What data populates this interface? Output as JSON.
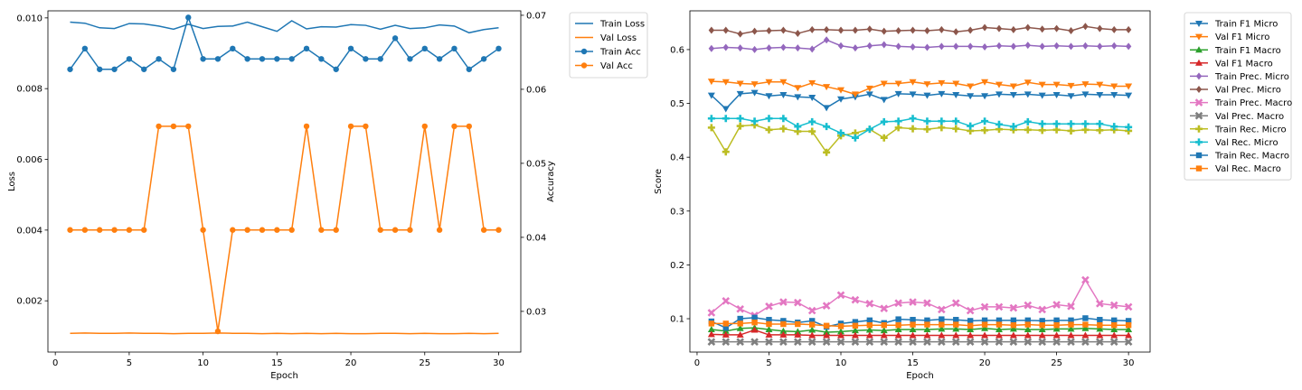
{
  "chart_data": [
    {
      "type": "line",
      "xlabel": "Epoch",
      "ylabel": "Loss",
      "y2label": "Accuracy",
      "xlim": [
        -0.5,
        31.5
      ],
      "ylim": [
        0.00055,
        0.0102
      ],
      "y2lim": [
        0.0245,
        0.0706
      ],
      "xticks": [
        0,
        5,
        10,
        15,
        20,
        25,
        30
      ],
      "yticks": [
        0.002,
        0.004,
        0.006,
        0.008,
        0.01
      ],
      "ytick_labels": [
        "0.002",
        "0.004",
        "0.006",
        "0.008",
        "0.010"
      ],
      "y2ticks": [
        0.03,
        0.04,
        0.05,
        0.06,
        0.07
      ],
      "y2tick_labels": [
        "0.03",
        "0.04",
        "0.05",
        "0.06",
        "0.07"
      ],
      "legend_position": "outside-right-top",
      "x": [
        1,
        2,
        3,
        4,
        5,
        6,
        7,
        8,
        9,
        10,
        11,
        12,
        13,
        14,
        15,
        16,
        17,
        18,
        19,
        20,
        21,
        22,
        23,
        24,
        25,
        26,
        27,
        28,
        29,
        30
      ],
      "series": [
        {
          "name": "Train Loss",
          "axis": "left",
          "color": "#1f77b4",
          "marker": "none",
          "values": [
            0.00988,
            0.00985,
            0.00972,
            0.0097,
            0.00984,
            0.00983,
            0.00977,
            0.00968,
            0.00982,
            0.0097,
            0.00976,
            0.00977,
            0.00988,
            0.00975,
            0.00962,
            0.00992,
            0.00969,
            0.00975,
            0.00974,
            0.00981,
            0.00979,
            0.00968,
            0.00979,
            0.0097,
            0.00972,
            0.0098,
            0.00977,
            0.00958,
            0.00967,
            0.00972
          ]
        },
        {
          "name": "Val Loss",
          "axis": "left",
          "color": "#ff7f0e",
          "marker": "none",
          "values": [
            0.00108,
            0.00109,
            0.00108,
            0.00108,
            0.00109,
            0.00108,
            0.00108,
            0.00107,
            0.00108,
            0.00108,
            0.00109,
            0.00108,
            0.00108,
            0.00107,
            0.00108,
            0.00107,
            0.00108,
            0.00107,
            0.00108,
            0.00107,
            0.00107,
            0.00108,
            0.00108,
            0.00107,
            0.00108,
            0.00107,
            0.00107,
            0.00108,
            0.00107,
            0.00108
          ]
        },
        {
          "name": "Train Acc",
          "axis": "right",
          "color": "#1f77b4",
          "marker": "circle",
          "values": [
            0.0627,
            0.0655,
            0.0627,
            0.0627,
            0.0641,
            0.0627,
            0.0641,
            0.0627,
            0.0697,
            0.0641,
            0.0641,
            0.0655,
            0.0641,
            0.0641,
            0.0641,
            0.0641,
            0.0655,
            0.0641,
            0.0627,
            0.0655,
            0.0641,
            0.0641,
            0.0669,
            0.0641,
            0.0655,
            0.0641,
            0.0655,
            0.0627,
            0.0641,
            0.0655
          ]
        },
        {
          "name": "Val Acc",
          "axis": "right",
          "color": "#ff7f0e",
          "marker": "circle",
          "values": [
            0.041,
            0.041,
            0.041,
            0.041,
            0.041,
            0.041,
            0.055,
            0.055,
            0.055,
            0.041,
            0.0273,
            0.041,
            0.041,
            0.041,
            0.041,
            0.041,
            0.055,
            0.041,
            0.041,
            0.055,
            0.055,
            0.041,
            0.041,
            0.041,
            0.055,
            0.041,
            0.055,
            0.055,
            0.041,
            0.041
          ]
        }
      ]
    },
    {
      "type": "line",
      "xlabel": "Epoch",
      "ylabel": "Score",
      "xlim": [
        -0.5,
        31.5
      ],
      "ylim": [
        0.038,
        0.672
      ],
      "xticks": [
        0,
        5,
        10,
        15,
        20,
        25,
        30
      ],
      "yticks": [
        0.1,
        0.2,
        0.3,
        0.4,
        0.5,
        0.6
      ],
      "ytick_labels": [
        "0.1",
        "0.2",
        "0.3",
        "0.4",
        "0.5",
        "0.6"
      ],
      "legend_position": "outside-right-top",
      "x": [
        1,
        2,
        3,
        4,
        5,
        6,
        7,
        8,
        9,
        10,
        11,
        12,
        13,
        14,
        15,
        16,
        17,
        18,
        19,
        20,
        21,
        22,
        23,
        24,
        25,
        26,
        27,
        28,
        29,
        30
      ],
      "series": [
        {
          "name": "Train F1 Micro",
          "color": "#1f77b4",
          "marker": "tri_down",
          "values": [
            0.515,
            0.49,
            0.518,
            0.52,
            0.514,
            0.516,
            0.512,
            0.511,
            0.492,
            0.508,
            0.512,
            0.517,
            0.507,
            0.518,
            0.517,
            0.515,
            0.518,
            0.516,
            0.514,
            0.514,
            0.517,
            0.516,
            0.517,
            0.515,
            0.516,
            0.514,
            0.517,
            0.516,
            0.516,
            0.515
          ]
        },
        {
          "name": "Val F1 Micro",
          "color": "#ff7f0e",
          "marker": "tri_down",
          "values": [
            0.541,
            0.54,
            0.537,
            0.536,
            0.54,
            0.54,
            0.529,
            0.538,
            0.531,
            0.525,
            0.517,
            0.528,
            0.537,
            0.537,
            0.54,
            0.536,
            0.538,
            0.537,
            0.532,
            0.54,
            0.535,
            0.532,
            0.539,
            0.535,
            0.535,
            0.533,
            0.536,
            0.535,
            0.532,
            0.532
          ]
        },
        {
          "name": "Train F1 Macro",
          "color": "#2ca02c",
          "marker": "tri_up",
          "values": [
            0.08,
            0.077,
            0.082,
            0.083,
            0.08,
            0.077,
            0.076,
            0.079,
            0.075,
            0.076,
            0.078,
            0.079,
            0.078,
            0.08,
            0.08,
            0.08,
            0.081,
            0.081,
            0.08,
            0.082,
            0.08,
            0.081,
            0.08,
            0.08,
            0.081,
            0.081,
            0.082,
            0.081,
            0.08,
            0.08
          ]
        },
        {
          "name": "Val F1 Macro",
          "color": "#d62728",
          "marker": "tri_up",
          "values": [
            0.071,
            0.07,
            0.07,
            0.079,
            0.07,
            0.07,
            0.07,
            0.069,
            0.069,
            0.069,
            0.069,
            0.069,
            0.069,
            0.069,
            0.069,
            0.069,
            0.069,
            0.069,
            0.069,
            0.069,
            0.069,
            0.069,
            0.069,
            0.069,
            0.069,
            0.069,
            0.069,
            0.069,
            0.069,
            0.069
          ]
        },
        {
          "name": "Train Prec. Micro",
          "color": "#9467bd",
          "marker": "diamond",
          "values": [
            0.602,
            0.604,
            0.603,
            0.6,
            0.603,
            0.604,
            0.603,
            0.601,
            0.618,
            0.607,
            0.603,
            0.607,
            0.609,
            0.606,
            0.605,
            0.604,
            0.606,
            0.606,
            0.606,
            0.605,
            0.607,
            0.606,
            0.608,
            0.606,
            0.607,
            0.606,
            0.607,
            0.606,
            0.607,
            0.606
          ]
        },
        {
          "name": "Val Prec. Micro",
          "color": "#8c564b",
          "marker": "diamond",
          "values": [
            0.636,
            0.636,
            0.629,
            0.634,
            0.635,
            0.636,
            0.63,
            0.637,
            0.637,
            0.636,
            0.636,
            0.638,
            0.634,
            0.635,
            0.636,
            0.635,
            0.637,
            0.633,
            0.636,
            0.641,
            0.639,
            0.637,
            0.641,
            0.638,
            0.639,
            0.635,
            0.643,
            0.639,
            0.637,
            0.637
          ]
        },
        {
          "name": "Train Prec. Macro",
          "color": "#e377c2",
          "marker": "x",
          "values": [
            0.111,
            0.133,
            0.118,
            0.106,
            0.123,
            0.131,
            0.13,
            0.115,
            0.124,
            0.144,
            0.135,
            0.128,
            0.119,
            0.129,
            0.131,
            0.129,
            0.117,
            0.129,
            0.115,
            0.122,
            0.122,
            0.12,
            0.125,
            0.117,
            0.126,
            0.123,
            0.172,
            0.128,
            0.125,
            0.122
          ]
        },
        {
          "name": "Val Prec. Macro",
          "color": "#7f7f7f",
          "marker": "x",
          "values": [
            0.057,
            0.057,
            0.057,
            0.057,
            0.057,
            0.057,
            0.057,
            0.057,
            0.057,
            0.057,
            0.057,
            0.057,
            0.057,
            0.057,
            0.057,
            0.057,
            0.057,
            0.057,
            0.057,
            0.057,
            0.057,
            0.057,
            0.057,
            0.057,
            0.057,
            0.057,
            0.057,
            0.057,
            0.057,
            0.057
          ]
        },
        {
          "name": "Train Rec. Micro",
          "color": "#bcbd22",
          "marker": "plus",
          "values": [
            0.455,
            0.41,
            0.458,
            0.46,
            0.451,
            0.453,
            0.448,
            0.448,
            0.409,
            0.44,
            0.445,
            0.452,
            0.436,
            0.455,
            0.453,
            0.452,
            0.455,
            0.453,
            0.449,
            0.45,
            0.452,
            0.451,
            0.451,
            0.45,
            0.451,
            0.449,
            0.451,
            0.45,
            0.451,
            0.449
          ]
        },
        {
          "name": "Val Rec. Micro",
          "color": "#17becf",
          "marker": "plus",
          "values": [
            0.472,
            0.472,
            0.472,
            0.467,
            0.472,
            0.472,
            0.457,
            0.466,
            0.457,
            0.445,
            0.436,
            0.452,
            0.466,
            0.467,
            0.472,
            0.467,
            0.467,
            0.467,
            0.458,
            0.467,
            0.461,
            0.457,
            0.466,
            0.462,
            0.462,
            0.462,
            0.462,
            0.462,
            0.457,
            0.456
          ]
        },
        {
          "name": "Train Rec. Macro",
          "color": "#1f77b4",
          "marker": "square",
          "values": [
            0.095,
            0.083,
            0.1,
            0.102,
            0.098,
            0.096,
            0.093,
            0.096,
            0.085,
            0.091,
            0.094,
            0.097,
            0.092,
            0.099,
            0.098,
            0.097,
            0.099,
            0.098,
            0.096,
            0.097,
            0.097,
            0.097,
            0.097,
            0.096,
            0.097,
            0.097,
            0.101,
            0.098,
            0.097,
            0.096
          ]
        },
        {
          "name": "Val Rec. Macro",
          "color": "#ff7f0e",
          "marker": "square",
          "values": [
            0.091,
            0.091,
            0.091,
            0.093,
            0.09,
            0.09,
            0.09,
            0.089,
            0.087,
            0.086,
            0.087,
            0.088,
            0.088,
            0.088,
            0.089,
            0.089,
            0.089,
            0.089,
            0.087,
            0.089,
            0.089,
            0.088,
            0.089,
            0.088,
            0.088,
            0.089,
            0.089,
            0.088,
            0.088,
            0.088
          ]
        }
      ]
    }
  ]
}
